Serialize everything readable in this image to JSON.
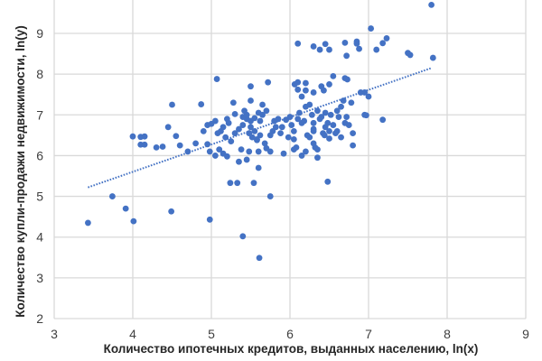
{
  "chart_data": {
    "type": "scatter",
    "title": "",
    "xlabel": "Количество ипотечных кредитов, выданных населению, ln(x)",
    "ylabel": "Количество купли-продажи недвижимости, ln(y)",
    "xlim": [
      3,
      9
    ],
    "ylim": [
      2,
      10
    ],
    "xticks": [
      "3",
      "4",
      "5",
      "6",
      "7",
      "8",
      "9"
    ],
    "yticks": [
      "2",
      "3",
      "4",
      "5",
      "6",
      "7",
      "8",
      "9"
    ],
    "grid": true,
    "legend": "none",
    "colors": {
      "points": "#4472c4",
      "trendline": "#4472c4",
      "grid": "#d9d9d9"
    },
    "trendline": {
      "type": "linear",
      "x": [
        3.43,
        7.8
      ],
      "y": [
        5.22,
        8.15
      ]
    },
    "points": [
      [
        3.43,
        4.35
      ],
      [
        3.74,
        5.0
      ],
      [
        3.91,
        4.7
      ],
      [
        4.01,
        4.39
      ],
      [
        4.49,
        4.63
      ],
      [
        4.98,
        4.43
      ],
      [
        5.24,
        5.33
      ],
      [
        5.33,
        5.33
      ],
      [
        5.54,
        5.33
      ],
      [
        5.4,
        4.02
      ],
      [
        5.61,
        3.49
      ],
      [
        5.75,
        5.0
      ],
      [
        6.48,
        5.36
      ],
      [
        7.8,
        9.7
      ],
      [
        6.1,
        8.75
      ],
      [
        6.3,
        8.68
      ],
      [
        6.38,
        8.6
      ],
      [
        6.45,
        8.74
      ],
      [
        6.5,
        8.6
      ],
      [
        6.7,
        8.77
      ],
      [
        6.85,
        8.8
      ],
      [
        6.85,
        8.75
      ],
      [
        6.88,
        8.62
      ],
      [
        7.03,
        9.12
      ],
      [
        7.1,
        8.6
      ],
      [
        7.18,
        8.76
      ],
      [
        7.23,
        8.88
      ],
      [
        7.5,
        8.52
      ],
      [
        7.53,
        8.47
      ],
      [
        7.82,
        8.4
      ],
      [
        6.72,
        8.45
      ],
      [
        5.07,
        7.88
      ],
      [
        5.5,
        7.7
      ],
      [
        5.72,
        7.8
      ],
      [
        6.06,
        7.75
      ],
      [
        6.1,
        7.8
      ],
      [
        6.2,
        7.78
      ],
      [
        6.4,
        7.7
      ],
      [
        6.5,
        7.75
      ],
      [
        6.55,
        7.95
      ],
      [
        6.7,
        7.9
      ],
      [
        6.73,
        7.87
      ],
      [
        6.43,
        7.6
      ],
      [
        6.2,
        7.6
      ],
      [
        6.3,
        7.55
      ],
      [
        6.1,
        7.62
      ],
      [
        6.15,
        7.45
      ],
      [
        6.95,
        7.55
      ],
      [
        7.0,
        7.45
      ],
      [
        6.95,
        7.0
      ],
      [
        7.18,
        6.88
      ],
      [
        4.0,
        6.47
      ],
      [
        4.1,
        6.46
      ],
      [
        4.15,
        6.47
      ],
      [
        4.1,
        6.27
      ],
      [
        4.15,
        6.27
      ],
      [
        4.3,
        6.2
      ],
      [
        4.38,
        6.22
      ],
      [
        4.45,
        6.7
      ],
      [
        4.5,
        7.25
      ],
      [
        4.55,
        6.48
      ],
      [
        4.6,
        6.25
      ],
      [
        4.7,
        6.1
      ],
      [
        4.8,
        6.3
      ],
      [
        4.9,
        6.6
      ],
      [
        4.95,
        6.75
      ],
      [
        4.95,
        6.28
      ],
      [
        5.0,
        6.78
      ],
      [
        4.87,
        7.26
      ],
      [
        5.05,
        6.85
      ],
      [
        5.08,
        6.55
      ],
      [
        4.98,
        6.1
      ],
      [
        5.05,
        6.0
      ],
      [
        5.15,
        6.05
      ],
      [
        5.1,
        6.15
      ],
      [
        5.2,
        5.98
      ],
      [
        5.25,
        6.35
      ],
      [
        5.2,
        6.9
      ],
      [
        5.28,
        7.3
      ],
      [
        5.3,
        6.55
      ],
      [
        5.35,
        6.65
      ],
      [
        5.4,
        6.75
      ],
      [
        5.45,
        6.9
      ],
      [
        5.5,
        6.7
      ],
      [
        5.55,
        6.6
      ],
      [
        5.58,
        6.4
      ],
      [
        5.6,
        6.1
      ],
      [
        5.62,
        6.5
      ],
      [
        5.62,
        6.85
      ],
      [
        5.65,
        7.0
      ],
      [
        5.7,
        7.1
      ],
      [
        5.35,
        5.85
      ],
      [
        5.38,
        6.15
      ],
      [
        5.45,
        5.9
      ],
      [
        5.48,
        6.1
      ],
      [
        5.5,
        6.85
      ],
      [
        5.18,
        6.45
      ],
      [
        5.12,
        6.6
      ],
      [
        5.15,
        6.7
      ],
      [
        5.22,
        6.8
      ],
      [
        5.3,
        7.02
      ],
      [
        5.4,
        6.95
      ],
      [
        5.45,
        7.0
      ],
      [
        5.48,
        6.55
      ],
      [
        5.52,
        6.45
      ],
      [
        5.58,
        6.38
      ],
      [
        5.55,
        6.92
      ],
      [
        5.6,
        7.05
      ],
      [
        5.65,
        7.25
      ],
      [
        5.5,
        7.35
      ],
      [
        5.42,
        7.1
      ],
      [
        5.68,
        6.3
      ],
      [
        5.7,
        6.18
      ],
      [
        5.75,
        6.5
      ],
      [
        5.78,
        6.6
      ],
      [
        5.8,
        6.85
      ],
      [
        5.82,
        6.7
      ],
      [
        5.85,
        6.9
      ],
      [
        5.88,
        6.55
      ],
      [
        5.9,
        6.7
      ],
      [
        5.92,
        6.05
      ],
      [
        5.95,
        6.88
      ],
      [
        6.0,
        6.95
      ],
      [
        6.02,
        6.75
      ],
      [
        6.05,
        6.6
      ],
      [
        6.05,
        6.4
      ],
      [
        5.98,
        6.45
      ],
      [
        6.08,
        6.2
      ],
      [
        6.1,
        6.9
      ],
      [
        6.12,
        7.05
      ],
      [
        6.15,
        6.8
      ],
      [
        6.18,
        6.85
      ],
      [
        6.2,
        7.2
      ],
      [
        6.22,
        6.5
      ],
      [
        6.25,
        6.45
      ],
      [
        6.25,
        7.25
      ],
      [
        6.28,
        7.0
      ],
      [
        6.3,
        6.8
      ],
      [
        6.3,
        6.6
      ],
      [
        6.32,
        6.2
      ],
      [
        6.35,
        7.1
      ],
      [
        6.38,
        6.9
      ],
      [
        6.4,
        6.95
      ],
      [
        6.42,
        6.55
      ],
      [
        6.45,
        6.7
      ],
      [
        6.45,
        7.05
      ],
      [
        6.48,
        6.8
      ],
      [
        6.5,
        6.6
      ],
      [
        6.52,
        7.0
      ],
      [
        6.55,
        6.75
      ],
      [
        6.58,
        6.55
      ],
      [
        6.6,
        6.6
      ],
      [
        6.6,
        7.1
      ],
      [
        6.62,
        6.95
      ],
      [
        6.65,
        6.45
      ],
      [
        6.65,
        7.2
      ],
      [
        6.7,
        6.8
      ],
      [
        6.72,
        6.95
      ],
      [
        6.75,
        6.75
      ],
      [
        6.78,
        7.3
      ],
      [
        6.2,
        6.1
      ],
      [
        6.3,
        6.3
      ],
      [
        6.35,
        5.95
      ],
      [
        6.15,
        6.0
      ],
      [
        6.05,
        6.15
      ],
      [
        5.75,
        6.1
      ],
      [
        5.6,
        5.7
      ],
      [
        6.9,
        7.55
      ],
      [
        6.68,
        7.35
      ],
      [
        6.8,
        6.55
      ],
      [
        6.8,
        6.25
      ],
      [
        6.5,
        6.42
      ],
      [
        6.97,
        6.99
      ],
      [
        6.35,
        6.15
      ],
      [
        6.44,
        6.5
      ],
      [
        6.3,
        6.65
      ]
    ]
  }
}
